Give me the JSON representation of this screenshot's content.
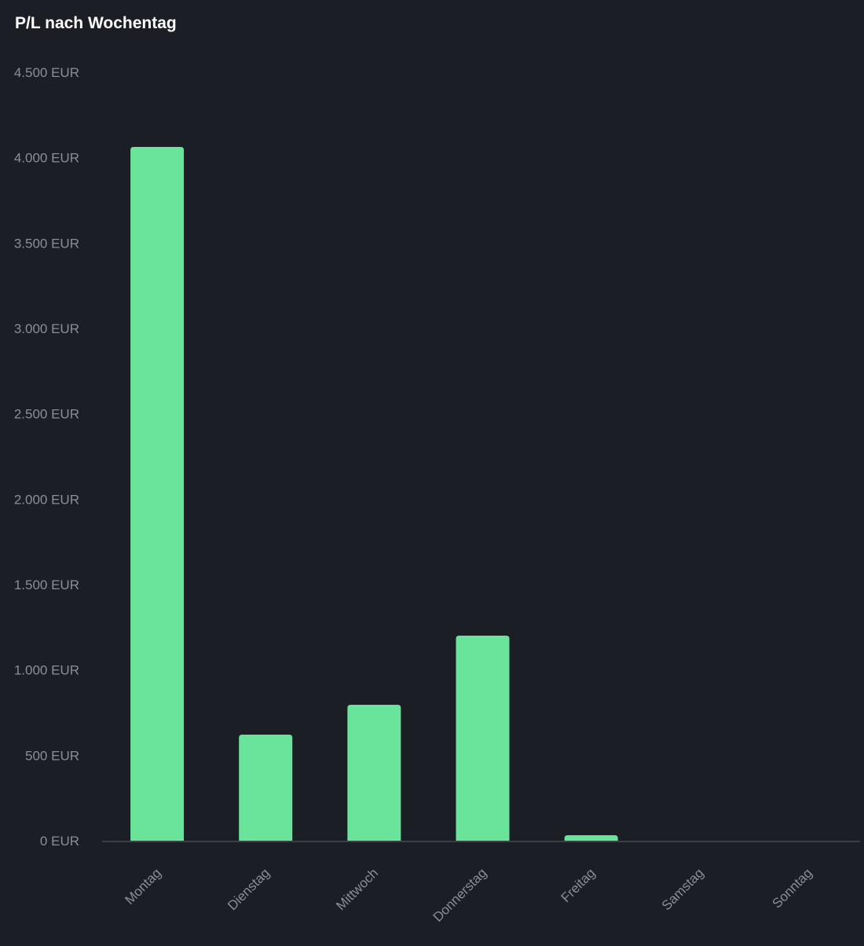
{
  "chart_data": {
    "type": "bar",
    "title": "P/L nach Wochentag",
    "categories": [
      "Montag",
      "Dienstag",
      "Mittwoch",
      "Donnerstag",
      "Freitag",
      "Samstag",
      "Sonntag"
    ],
    "values": [
      4063,
      621,
      796,
      1201,
      32,
      0,
      0
    ],
    "xlabel": "",
    "ylabel": "",
    "ylim": [
      0,
      4500
    ],
    "yticks": [
      0,
      500,
      1000,
      1500,
      2000,
      2500,
      3000,
      3500,
      4000,
      4500
    ],
    "ytick_labels": [
      "0 EUR",
      "500 EUR",
      "1.000 EUR",
      "1.500 EUR",
      "2.000 EUR",
      "2.500 EUR",
      "3.000 EUR",
      "3.500 EUR",
      "4.000 EUR",
      "4.500 EUR"
    ],
    "grid": false,
    "bar_color": "#6ae49b"
  }
}
